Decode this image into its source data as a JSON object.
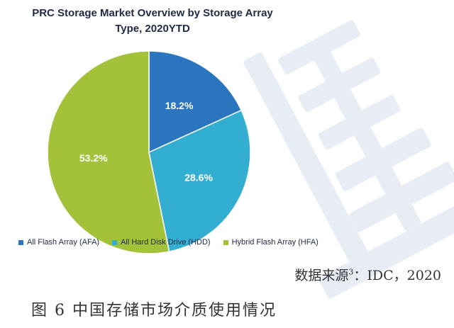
{
  "chart_data": {
    "type": "pie",
    "title": "PRC Storage Market Overview by Storage Array Type, 2020YTD",
    "title_lines": [
      "PRC Storage Market Overview by Storage Array",
      "Type, 2020YTD"
    ],
    "slices": [
      {
        "name": "All Flash Array (AFA)",
        "value": 18.2,
        "label": "18.2%",
        "color": "#2a75bd"
      },
      {
        "name": "All Hard Disk Drive (HDD)",
        "value": 28.6,
        "label": "28.6%",
        "color": "#33aed0"
      },
      {
        "name": "Hybrid Flash Array (HFA)",
        "value": 53.2,
        "label": "53.2%",
        "color": "#a3c23a"
      }
    ],
    "legend_position": "bottom",
    "start_angle_deg": 0,
    "direction": "clockwise"
  },
  "source": {
    "text": "数据来源",
    "sup": "3",
    "rest": "：IDC，2020"
  },
  "caption": "图 6 中国存储市场介质使用情况"
}
